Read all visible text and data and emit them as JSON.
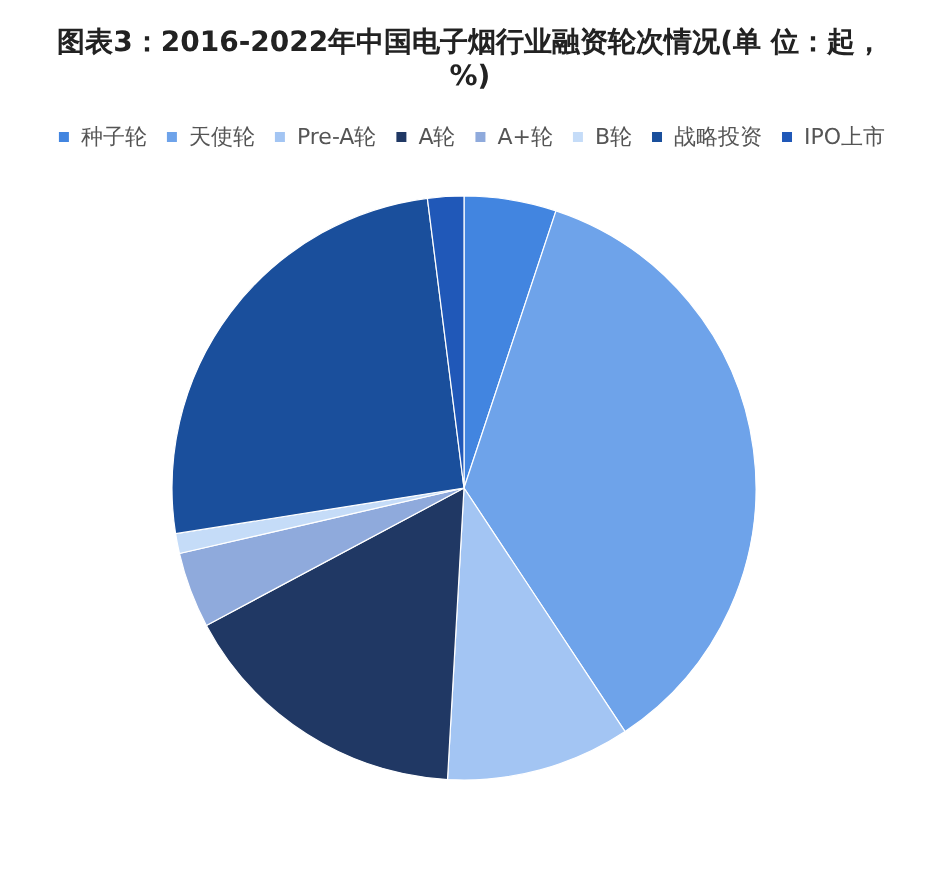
{
  "chart_data": {
    "type": "pie",
    "title": "图表3：2016-2022年中国电子烟行业融资轮次情况(单 位：起，%)",
    "categories": [
      "种子轮",
      "天使轮",
      "Pre-A轮",
      "A轮",
      "A+轮",
      "B轮",
      "战略投资",
      "IPO上市"
    ],
    "values": [
      5.1,
      35.6,
      10.2,
      16.3,
      4.2,
      1.1,
      25.5,
      2.0
    ],
    "colors": [
      "#4285e0",
      "#6ea3ea",
      "#a3c5f3",
      "#203864",
      "#8faadc",
      "#c5dcf8",
      "#1a4f9c",
      "#2058b8"
    ],
    "legend": "top"
  }
}
